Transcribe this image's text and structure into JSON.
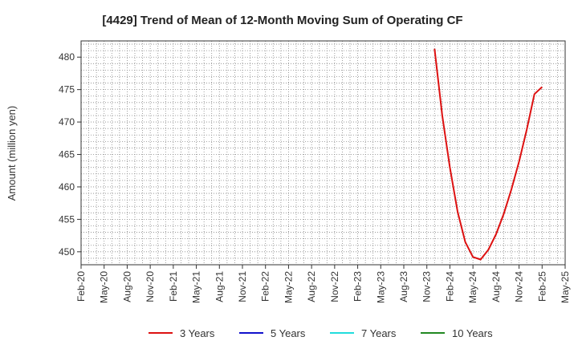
{
  "chart_data": {
    "type": "line",
    "title": "[4429]  Trend of Mean of 12-Month Moving Sum of Operating CF",
    "ylabel": "Amount (million yen)",
    "xlabel": "",
    "ylim": [
      448,
      482.5
    ],
    "yticks": [
      450,
      455,
      460,
      465,
      470,
      475,
      480
    ],
    "x_start": "2020-02",
    "x_end": "2025-05",
    "xtick_labels": [
      "Feb-20",
      "May-20",
      "Aug-20",
      "Nov-20",
      "Feb-21",
      "May-21",
      "Aug-21",
      "Nov-21",
      "Feb-22",
      "May-22",
      "Aug-22",
      "Nov-22",
      "Feb-23",
      "May-23",
      "Aug-23",
      "Nov-23",
      "Feb-24",
      "May-24",
      "Aug-24",
      "Nov-24",
      "Feb-25",
      "May-25"
    ],
    "grid": true,
    "legend_position": "bottom",
    "series": [
      {
        "name": "3 Years",
        "color": "#dd1111",
        "x": [
          "2023-12",
          "2024-01",
          "2024-02",
          "2024-03",
          "2024-04",
          "2024-05",
          "2024-06",
          "2024-07",
          "2024-08",
          "2024-09",
          "2024-10",
          "2024-11",
          "2024-12",
          "2025-01",
          "2025-02"
        ],
        "values": [
          481.3,
          471.0,
          463.0,
          456.2,
          451.5,
          449.2,
          448.8,
          450.3,
          452.7,
          455.8,
          459.6,
          463.9,
          468.8,
          474.3,
          475.4
        ]
      },
      {
        "name": "5 Years",
        "color": "#1111cc",
        "x": [],
        "values": []
      },
      {
        "name": "7 Years",
        "color": "#22dddd",
        "x": [],
        "values": []
      },
      {
        "name": "10 Years",
        "color": "#228822",
        "x": [],
        "values": []
      }
    ]
  }
}
